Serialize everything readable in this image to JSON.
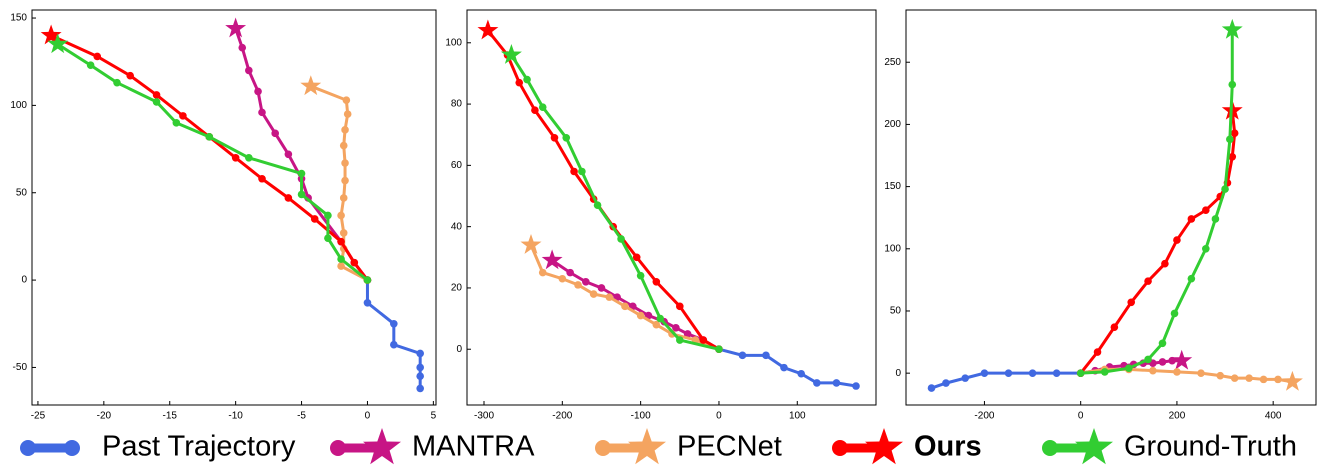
{
  "chart_data": [
    {
      "type": "line",
      "xlim": [
        -25.45,
        5.2
      ],
      "ylim": [
        -71.5,
        154.6
      ],
      "xticks": [
        -25,
        -20,
        -15,
        -10,
        -5,
        0,
        5
      ],
      "yticks": [
        -50,
        0,
        50,
        100,
        150
      ],
      "series": [
        {
          "name": "Past Trajectory",
          "color": "#4169e1",
          "x": [
            4,
            4,
            4,
            4,
            2,
            2,
            0,
            0
          ],
          "values": [
            -62,
            -55,
            -50,
            -42,
            -37,
            -25,
            -13,
            0
          ]
        },
        {
          "name": "MANTRA",
          "color": "#c71585",
          "end_marker": "star",
          "x": [
            0,
            -1,
            -2,
            -4.5,
            -5,
            -6,
            -7,
            -8,
            -8.3,
            -9,
            -9.5,
            -10
          ],
          "values": [
            0,
            10,
            22,
            47,
            58,
            72,
            84,
            96,
            108,
            120,
            133,
            144
          ]
        },
        {
          "name": "PECNet",
          "color": "#f4a460",
          "end_marker": "star",
          "x": [
            0,
            -2,
            -1.8,
            -1.8,
            -2,
            -1.8,
            -1.7,
            -1.7,
            -1.8,
            -1.7,
            -1.5,
            -1.6,
            -4.3
          ],
          "values": [
            0,
            8,
            18,
            27,
            37,
            47,
            57,
            67,
            77,
            86,
            95,
            103,
            111
          ]
        },
        {
          "name": "Ours",
          "color": "#ff0000",
          "end_marker": "star",
          "x": [
            0,
            -1,
            -2,
            -4,
            -6,
            -8,
            -10,
            -12,
            -14,
            -16,
            -18,
            -20.5,
            -24
          ],
          "values": [
            0,
            10,
            22,
            35,
            47,
            58,
            70,
            82,
            94,
            106,
            117,
            128,
            140
          ]
        },
        {
          "name": "Ground-Truth",
          "color": "#32cd32",
          "end_marker": "star",
          "x": [
            0,
            -2,
            -3,
            -3,
            -5,
            -5,
            -9,
            -12,
            -14.5,
            -16,
            -19,
            -21,
            -23.5
          ],
          "values": [
            0,
            12,
            24,
            37,
            49,
            61,
            70,
            82,
            90,
            102,
            113,
            123,
            135
          ]
        }
      ]
    },
    {
      "type": "line",
      "xlim": [
        -321.7,
        200.5
      ],
      "ylim": [
        -18.2,
        110.7
      ],
      "xticks": [
        -300,
        -200,
        -100,
        0,
        100
      ],
      "yticks": [
        0,
        20,
        40,
        60,
        80,
        100
      ],
      "series": [
        {
          "name": "Past Trajectory",
          "color": "#4169e1",
          "x": [
            175,
            150,
            125,
            105,
            83,
            60,
            30,
            0
          ],
          "values": [
            -12,
            -11,
            -11,
            -8,
            -6,
            -2,
            -2,
            0
          ]
        },
        {
          "name": "MANTRA",
          "color": "#c71585",
          "end_marker": "star",
          "x": [
            0,
            -20,
            -40,
            -55,
            -70,
            -90,
            -110,
            -130,
            -150,
            -170,
            -190,
            -213
          ],
          "values": [
            0,
            3,
            5,
            7,
            9,
            11,
            14,
            17,
            20,
            22,
            25,
            29
          ]
        },
        {
          "name": "PECNet",
          "color": "#f4a460",
          "end_marker": "star",
          "x": [
            0,
            -30,
            -60,
            -80,
            -100,
            -120,
            -140,
            -160,
            -180,
            -200,
            -225,
            -240
          ],
          "values": [
            0,
            3,
            5,
            8,
            11,
            14,
            17,
            18,
            21,
            23,
            25,
            34
          ]
        },
        {
          "name": "Ours",
          "color": "#ff0000",
          "end_marker": "star",
          "x": [
            0,
            -20,
            -50,
            -80,
            -105,
            -135,
            -160,
            -185,
            -210,
            -235,
            -255,
            -270,
            -295
          ],
          "values": [
            0,
            3,
            14,
            22,
            30,
            40,
            49,
            58,
            69,
            78,
            87,
            96,
            104
          ]
        },
        {
          "name": "Ground-Truth",
          "color": "#32cd32",
          "end_marker": "star",
          "x": [
            0,
            -50,
            -75,
            -100,
            -125,
            -155,
            -175,
            -195,
            -225,
            -245,
            -265
          ],
          "values": [
            0,
            3,
            10,
            24,
            36,
            47,
            58,
            69,
            79,
            88,
            96
          ]
        }
      ]
    },
    {
      "type": "line",
      "xlim": [
        -363,
        489
      ],
      "ylim": [
        -25.6,
        292
      ],
      "xticks": [
        -200,
        0,
        200,
        400
      ],
      "yticks": [
        0,
        50,
        100,
        150,
        200,
        250
      ],
      "series": [
        {
          "name": "Past Trajectory",
          "color": "#4169e1",
          "x": [
            -310,
            -280,
            -240,
            -200,
            -150,
            -100,
            -50,
            0
          ],
          "values": [
            -12,
            -8,
            -4,
            0,
            0,
            0,
            0,
            0
          ]
        },
        {
          "name": "MANTRA",
          "color": "#c71585",
          "end_marker": "star",
          "x": [
            0,
            30,
            60,
            90,
            110,
            130,
            150,
            170,
            190,
            210
          ],
          "values": [
            0,
            2,
            5,
            6,
            7,
            8,
            8,
            9,
            10,
            10
          ]
        },
        {
          "name": "PECNet",
          "color": "#f4a460",
          "end_marker": "star",
          "x": [
            0,
            50,
            100,
            150,
            200,
            250,
            290,
            320,
            350,
            380,
            410,
            440
          ],
          "values": [
            0,
            3,
            3,
            2,
            1,
            0,
            -2,
            -4,
            -4,
            -5,
            -5,
            -7
          ]
        },
        {
          "name": "Ours",
          "color": "#ff0000",
          "end_marker": "star",
          "x": [
            0,
            35,
            70,
            105,
            140,
            175,
            200,
            230,
            260,
            290,
            305,
            315,
            320,
            315
          ],
          "values": [
            0,
            17,
            37,
            57,
            74,
            88,
            107,
            124,
            131,
            142,
            153,
            174,
            193,
            211
          ]
        },
        {
          "name": "Ground-Truth",
          "color": "#32cd32",
          "end_marker": "star",
          "x": [
            0,
            50,
            100,
            140,
            170,
            195,
            230,
            260,
            280,
            300,
            310,
            315,
            315
          ],
          "values": [
            0,
            1,
            4,
            11,
            24,
            48,
            76,
            100,
            124,
            148,
            188,
            232,
            276
          ]
        }
      ]
    }
  ]
}
